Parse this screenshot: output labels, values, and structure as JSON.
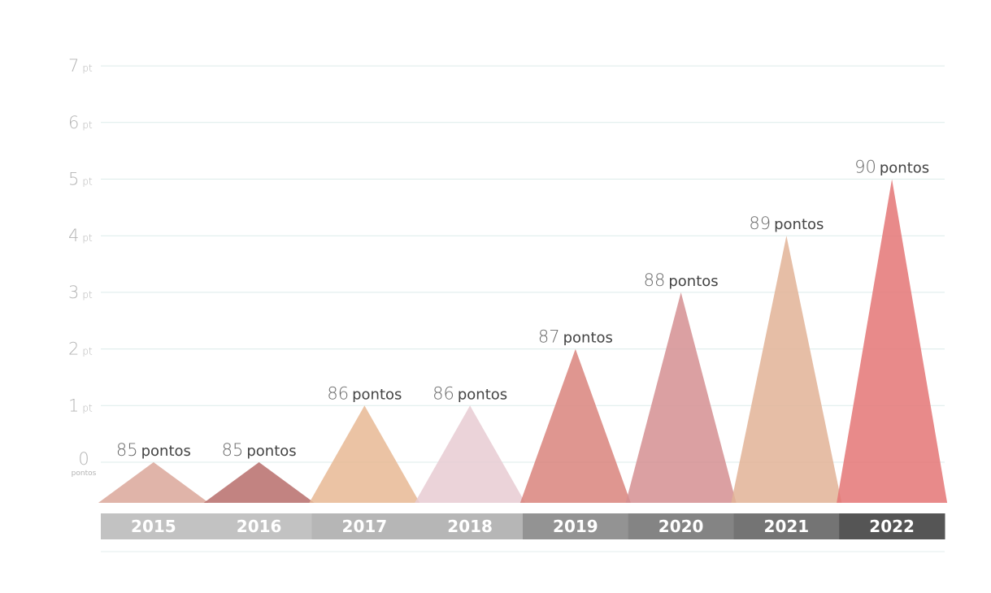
{
  "chart_data": {
    "type": "area",
    "categories": [
      "2015",
      "2016",
      "2017",
      "2018",
      "2019",
      "2020",
      "2021",
      "2022"
    ],
    "values": [
      0,
      0,
      1,
      1,
      2,
      3,
      4,
      5
    ],
    "value_labels": [
      "85",
      "85",
      "86",
      "86",
      "87",
      "88",
      "89",
      "90"
    ],
    "value_label_unit": "pontos",
    "ylim": [
      0,
      7
    ],
    "yticks": [
      {
        "value": 0,
        "label": "0",
        "unit": "pontos"
      },
      {
        "value": 1,
        "label": "1",
        "unit": "pt"
      },
      {
        "value": 2,
        "label": "2",
        "unit": "pt"
      },
      {
        "value": 3,
        "label": "3",
        "unit": "pt"
      },
      {
        "value": 4,
        "label": "4",
        "unit": "pt"
      },
      {
        "value": 5,
        "label": "5",
        "unit": "pt"
      },
      {
        "value": 6,
        "label": "6",
        "unit": "pt"
      },
      {
        "value": 7,
        "label": "7",
        "unit": "pt"
      }
    ],
    "grid": true,
    "colors": {
      "triangles": [
        "#dba79a",
        "#b76d6b",
        "#e8b894",
        "#e8cbd2",
        "#d9847c",
        "#d58f92",
        "#e2b397",
        "#e47676"
      ],
      "year_bars": [
        "#c2c2c2",
        "#c2c2c2",
        "#b6b6b6",
        "#b6b6b6",
        "#939393",
        "#848484",
        "#747474",
        "#555555"
      ]
    }
  }
}
